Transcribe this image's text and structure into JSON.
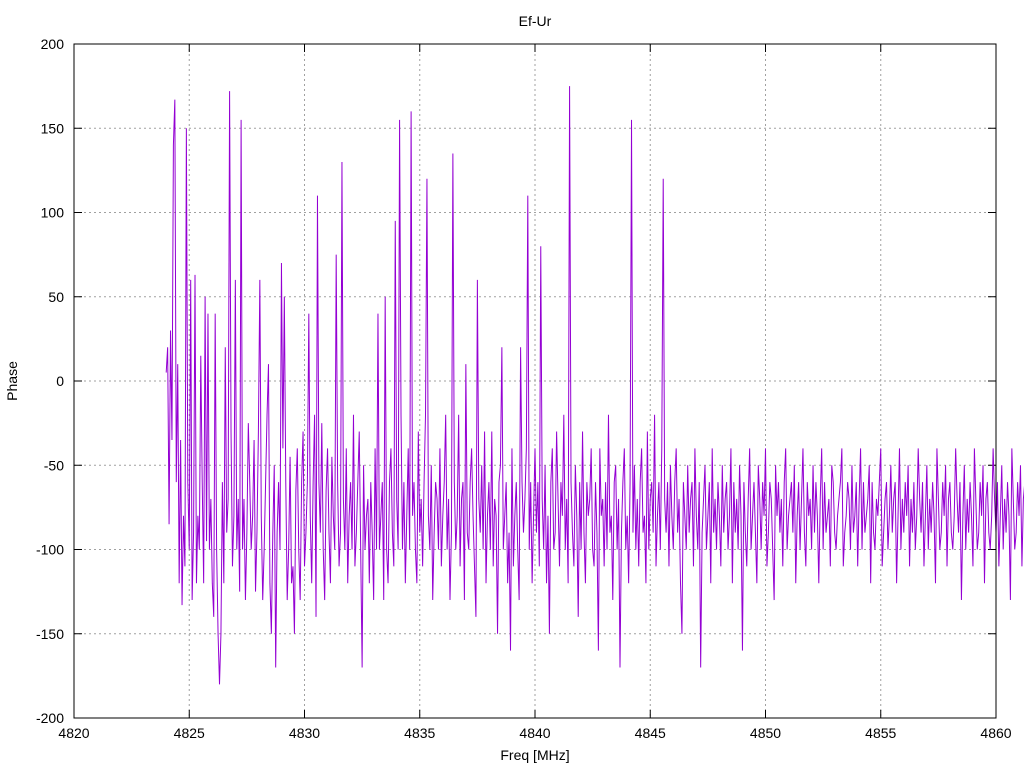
{
  "chart_data": {
    "type": "line",
    "title": "Ef-Ur",
    "xlabel": "Freq [MHz]",
    "ylabel": "Phase",
    "xlim": [
      4820,
      4860
    ],
    "ylim": [
      -200,
      200
    ],
    "xticks": [
      4820,
      4825,
      4830,
      4835,
      4840,
      4845,
      4850,
      4855,
      4860
    ],
    "yticks": [
      -200,
      -150,
      -100,
      -50,
      0,
      50,
      100,
      150,
      200
    ],
    "xtick_labels": [
      "4820",
      "4825",
      "4830",
      "4835",
      "4840",
      "4845",
      "4850",
      "4855",
      "4860"
    ],
    "ytick_labels": [
      "-200",
      "-150",
      "-100",
      "-50",
      "0",
      "50",
      "100",
      "150",
      "200"
    ],
    "grid": true,
    "line_color": "#9400d3",
    "series": [
      {
        "x_start": 4824.0,
        "x_step": 0.0625,
        "values": [
          5,
          20,
          -85,
          30,
          -35,
          140,
          167,
          -60,
          10,
          -120,
          -35,
          -133,
          -80,
          -110,
          150,
          -60,
          -100,
          60,
          -130,
          -90,
          63,
          -120,
          -80,
          -100,
          15,
          -60,
          -120,
          50,
          -95,
          40,
          -100,
          -70,
          -120,
          -140,
          40,
          -100,
          -150,
          -180,
          -150,
          -60,
          -120,
          20,
          -90,
          -70,
          172,
          -30,
          -110,
          -80,
          60,
          -100,
          -70,
          -125,
          155,
          -100,
          -70,
          -130,
          -90,
          -25,
          -60,
          -100,
          -80,
          -35,
          -125,
          -90,
          -30,
          60,
          -80,
          -130,
          -100,
          -60,
          -20,
          10,
          -120,
          -150,
          -90,
          -50,
          -170,
          -90,
          -60,
          -100,
          70,
          -40,
          50,
          -60,
          -130,
          -100,
          -45,
          -120,
          -110,
          -150,
          -65,
          -40,
          -100,
          -130,
          -60,
          -30,
          -110,
          -90,
          -60,
          40,
          -80,
          -120,
          -60,
          -20,
          -140,
          110,
          -60,
          -90,
          -25,
          -100,
          -130,
          -65,
          -40,
          -90,
          -120,
          -45,
          -80,
          -100,
          75,
          -60,
          -110,
          -90,
          130,
          -70,
          -100,
          -40,
          -120,
          -80,
          -60,
          -100,
          -20,
          -110,
          -90,
          -60,
          -30,
          -100,
          -170,
          -50,
          -100,
          -80,
          -70,
          -120,
          -60,
          -90,
          -130,
          -40,
          -100,
          40,
          -100,
          -80,
          -60,
          -130,
          50,
          -100,
          -120,
          -60,
          -40,
          -90,
          -110,
          95,
          -70,
          -100,
          155,
          -20,
          -100,
          -60,
          -120,
          -80,
          -40,
          -100,
          160,
          -80,
          -60,
          -100,
          -120,
          -30,
          -90,
          -70,
          -110,
          -60,
          -20,
          120,
          -80,
          -100,
          -50,
          -130,
          -90,
          -60,
          -70,
          -100,
          -40,
          -110,
          -80,
          -60,
          -20,
          -100,
          -70,
          -130,
          -90,
          135,
          -60,
          -100,
          -80,
          -20,
          -110,
          -70,
          -60,
          -130,
          10,
          -90,
          -100,
          -60,
          -40,
          -80,
          -110,
          -140,
          60,
          -70,
          -90,
          -50,
          -100,
          -30,
          -120,
          -80,
          -60,
          -100,
          -30,
          -110,
          -70,
          -80,
          -150,
          -60,
          -50,
          20,
          -100,
          -80,
          -60,
          -120,
          -90,
          -160,
          -40,
          -110,
          -80,
          -60,
          -100,
          -130,
          20,
          -60,
          -90,
          -70,
          -40,
          110,
          -100,
          -60,
          -120,
          -80,
          -40,
          -90,
          -60,
          -110,
          80,
          -70,
          -100,
          -50,
          -120,
          -80,
          -150,
          -60,
          -40,
          -100,
          -90,
          -30,
          -70,
          -110,
          -60,
          -80,
          -20,
          -100,
          -70,
          -120,
          175,
          -60,
          -90,
          -110,
          -50,
          -80,
          -140,
          -60,
          -100,
          -30,
          -90,
          -120,
          -60,
          -80,
          -70,
          -40,
          -100,
          -110,
          -60,
          -90,
          -160,
          -40,
          -80,
          -70,
          -110,
          -60,
          -100,
          -20,
          -90,
          -80,
          -130,
          -60,
          -50,
          -100,
          -70,
          -170,
          -90,
          -60,
          -40,
          -100,
          -80,
          -120,
          -60,
          155,
          -90,
          -50,
          -100,
          -70,
          -110,
          -60,
          -40,
          -90,
          -80,
          -120,
          -30,
          -100,
          -70,
          -60,
          -90,
          -20,
          -110,
          -80,
          -60,
          -100,
          -40,
          120,
          -70,
          -90,
          -60,
          -110,
          -50,
          -80,
          -100,
          -60,
          -40,
          -90,
          -70,
          -120,
          -150,
          -60,
          -80,
          -100,
          -50,
          -90,
          -70,
          -60,
          -110,
          -40,
          -80,
          -100,
          -60,
          -170,
          -90,
          -70,
          -50,
          -100,
          -80,
          -60,
          -120,
          -40,
          -90,
          -70,
          -100,
          -60,
          -80,
          -110,
          -50,
          -90,
          -70,
          -60,
          -100,
          -80,
          -40,
          -120,
          -60,
          -90,
          -70,
          -100,
          -50,
          -80,
          -160,
          -60,
          -90,
          -110,
          -70,
          -40,
          -100,
          -80,
          -60,
          -90,
          -120,
          -50,
          -70,
          -100,
          -60,
          -80,
          -40,
          -110,
          -90,
          -60,
          -70,
          -100,
          -130,
          -50,
          -80,
          -60,
          -90,
          -70,
          -110,
          -60,
          -40,
          -100,
          -80,
          -70,
          -60,
          -90,
          -50,
          -120,
          -80,
          -60,
          -100,
          -70,
          -40,
          -90,
          -110,
          -60,
          -80,
          -70,
          -100,
          -50,
          -90,
          -60,
          -80,
          -120,
          -70,
          -40,
          -100,
          -60,
          -90,
          -80,
          -70,
          -110,
          -50,
          -60,
          -90,
          -100,
          -80,
          -70,
          -60,
          -40,
          -110,
          -90,
          -80,
          -60,
          -70,
          -100,
          -50,
          -90,
          -80,
          -60,
          -110,
          -70,
          -40,
          -100,
          -60,
          -90,
          -80,
          -70,
          -50,
          -120,
          -60,
          -90,
          -100,
          -70,
          -80,
          -60,
          -40,
          -110,
          -90,
          -70,
          -60,
          -100,
          -80,
          -50,
          -90,
          -70,
          -60,
          -120,
          -80,
          -40,
          -100,
          -70,
          -90,
          -60,
          -80,
          -50,
          -110,
          -70,
          -90,
          -60,
          -100,
          -80,
          -40,
          -70,
          -90,
          -60,
          -110,
          -80,
          -50,
          -100,
          -70,
          -90,
          -60,
          -80,
          -120,
          -40,
          -70,
          -100,
          -90,
          -60,
          -80,
          -50,
          -110,
          -70,
          -60,
          -90,
          -100,
          -80,
          -40,
          -70,
          -90,
          -60,
          -130,
          -80,
          -50,
          -100,
          -70,
          -90,
          -60,
          -80,
          -110,
          -40,
          -70,
          -100,
          -90,
          -60,
          -80,
          -50,
          -120,
          -70,
          -60,
          -90,
          -100,
          -80,
          -40,
          -70,
          -90,
          -60,
          -110,
          -80,
          -50,
          -100,
          -70,
          -90,
          -60,
          -80,
          -130,
          -40,
          -70,
          -100,
          -90,
          -60,
          -80,
          -50,
          -110,
          -70,
          -60,
          -90,
          -100,
          -80,
          -40,
          -70,
          -90,
          -60,
          -120,
          -80,
          -50,
          -100
        ]
      }
    ]
  }
}
